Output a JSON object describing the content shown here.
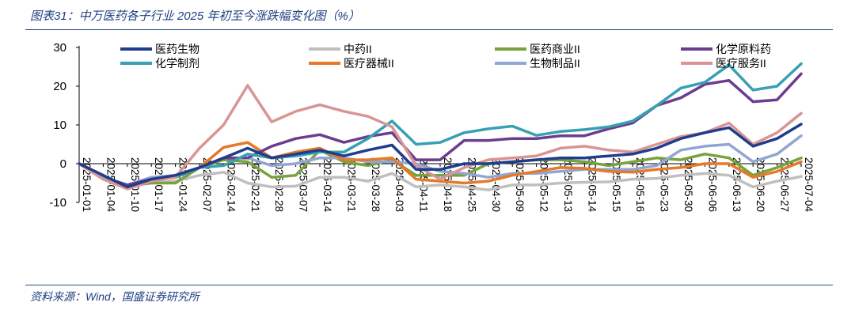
{
  "figure": {
    "title": "图表31：中万医药各子行业 2025 年初至今涨跌幅变化图（%）",
    "source": "资料来源：Wind，国盛证券研究所"
  },
  "chart_data": {
    "type": "line",
    "title": "中万医药各子行业 2025 年初至今涨跌幅变化图（%）",
    "xlabel": "",
    "ylabel": "",
    "ylim": [
      -10,
      30
    ],
    "yticks": [
      -10,
      0,
      10,
      20,
      30
    ],
    "legend_position": "top",
    "categories": [
      "2025-01-01",
      "2025-01-04",
      "2025-01-10",
      "2025-01-17",
      "2025-01-24",
      "2025-02-07",
      "2025-02-14",
      "2025-02-21",
      "2025-02-28",
      "2025-03-07",
      "2025-03-14",
      "2025-03-21",
      "2025-03-28",
      "2025-04-03",
      "2025-04-11",
      "2025-04-18",
      "2025-04-25",
      "2025-04-30",
      "2025-05-09",
      "2025-05-12",
      "2025-05-13",
      "2025-05-14",
      "2025-05-15",
      "2025-05-16",
      "2025-05-23",
      "2025-05-30",
      "2025-06-06",
      "2025-06-13",
      "2025-06-20",
      "2025-06-27",
      "2025-07-04"
    ],
    "series": [
      {
        "name": "医药生物",
        "color": "#1f3d8c",
        "values": [
          0,
          -3,
          -6,
          -4,
          -3,
          -1,
          1.5,
          4,
          1.5,
          2.5,
          3.5,
          2,
          3.5,
          4.8,
          -1.5,
          -1.5,
          0,
          0,
          0.5,
          1,
          1.5,
          1.5,
          2,
          2.5,
          4,
          6.5,
          8,
          9.3,
          4.5,
          6.5,
          10.2
        ]
      },
      {
        "name": "中药II",
        "color": "#bfbfbf",
        "values": [
          0,
          -4,
          -6,
          -5,
          -4.5,
          -3,
          -2.2,
          -5,
          -6,
          -5.8,
          -3.5,
          -3.5,
          -4.5,
          -2.5,
          -6,
          -5.5,
          -6,
          -6.8,
          -5.5,
          -5.5,
          -5,
          -4.8,
          -4.7,
          -4,
          -3.8,
          -3,
          -2.5,
          -3,
          -6,
          -4.5,
          -3.3
        ]
      },
      {
        "name": "医药商业II",
        "color": "#77a33b",
        "values": [
          0,
          -3.5,
          -5.5,
          -5,
          -5,
          -1,
          1,
          0.5,
          -3.5,
          -3,
          3.5,
          0.5,
          -0.5,
          1,
          -3,
          -3,
          -3,
          0,
          0.5,
          1,
          1,
          0.5,
          -0.5,
          0.5,
          1.5,
          1,
          2.5,
          1.5,
          -3,
          -1,
          1.5
        ]
      },
      {
        "name": "化学原料药",
        "color": "#6b3d8e",
        "values": [
          0,
          -3.5,
          -5.5,
          -4,
          -3.5,
          -1,
          1.5,
          1.5,
          4.5,
          6.5,
          7.5,
          5.5,
          7,
          8,
          1,
          1,
          6,
          6,
          6.5,
          6.5,
          7.2,
          7.2,
          9,
          10.5,
          15,
          17,
          20.5,
          21.5,
          16,
          16.5,
          23.2
        ]
      },
      {
        "name": "化学制剂",
        "color": "#37a0b3",
        "values": [
          0,
          -3.5,
          -6,
          -4,
          -3.5,
          -1,
          -0.5,
          2.5,
          1.5,
          2,
          3,
          3,
          6.5,
          11,
          5,
          5.5,
          8,
          9,
          9.7,
          7.3,
          8.3,
          8.8,
          9.5,
          11,
          15,
          19.5,
          21,
          25.5,
          19,
          20,
          25.8
        ]
      },
      {
        "name": "医疗器械II",
        "color": "#e47a2a",
        "values": [
          0,
          -4,
          -6.5,
          -4.5,
          -3.5,
          -1,
          4.2,
          5.5,
          1.5,
          3,
          4,
          1,
          1,
          1.5,
          -4,
          -4.5,
          -5,
          -4.5,
          -3,
          -2,
          -1,
          -1.2,
          -2,
          -2.2,
          -1.5,
          -1,
          0,
          0,
          -3.5,
          -2,
          0.5
        ]
      },
      {
        "name": "生物制品II",
        "color": "#92a6d3",
        "values": [
          0,
          -3.5,
          -5.5,
          -3.5,
          -3,
          -1,
          1.5,
          1.5,
          -0.5,
          0,
          1.5,
          1.5,
          0.5,
          0.5,
          0,
          -2,
          -2.5,
          -3.5,
          -2.5,
          -2.5,
          -2,
          -1.5,
          -1.5,
          -1.5,
          -0.5,
          3.5,
          4.5,
          5,
          0.5,
          2.5,
          7.2
        ]
      },
      {
        "name": "医疗服务II",
        "color": "#d99594",
        "values": [
          0,
          -4,
          -6.5,
          -4.5,
          -3.5,
          4,
          10,
          20.2,
          10.8,
          13.5,
          15.2,
          13.5,
          12.2,
          9.5,
          -0.5,
          -4,
          -1,
          1,
          1.5,
          2,
          4,
          4.5,
          3.5,
          3,
          5,
          7,
          8,
          10.5,
          5,
          8,
          13
        ]
      }
    ]
  }
}
